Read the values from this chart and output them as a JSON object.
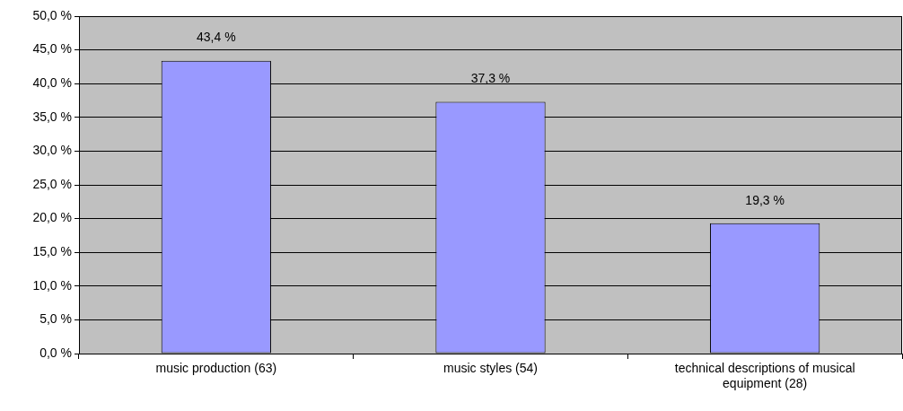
{
  "chart_data": {
    "type": "bar",
    "categories": [
      "music production (63)",
      "music styles (54)",
      "technical descriptions of musical equipment (28)"
    ],
    "values": [
      43.4,
      37.3,
      19.3
    ],
    "color": "#9999ff",
    "value_labels": [
      "43,4 %",
      "37,3 %",
      "19,3 %"
    ],
    "ylim": [
      0,
      50
    ],
    "yticks": [
      {
        "value": 0,
        "label": "0,0 %"
      },
      {
        "value": 5,
        "label": "5,0 %"
      },
      {
        "value": 10,
        "label": "10,0 %"
      },
      {
        "value": 15,
        "label": "15,0 %"
      },
      {
        "value": 20,
        "label": "20,0 %"
      },
      {
        "value": 25,
        "label": "25,0 %"
      },
      {
        "value": 30,
        "label": "30,0 %"
      },
      {
        "value": 35,
        "label": "35,0 %"
      },
      {
        "value": 40,
        "label": "40,0 %"
      },
      {
        "value": 45,
        "label": "45,0 %"
      },
      {
        "value": 50,
        "label": "50,0 %"
      }
    ],
    "grid": "y"
  }
}
